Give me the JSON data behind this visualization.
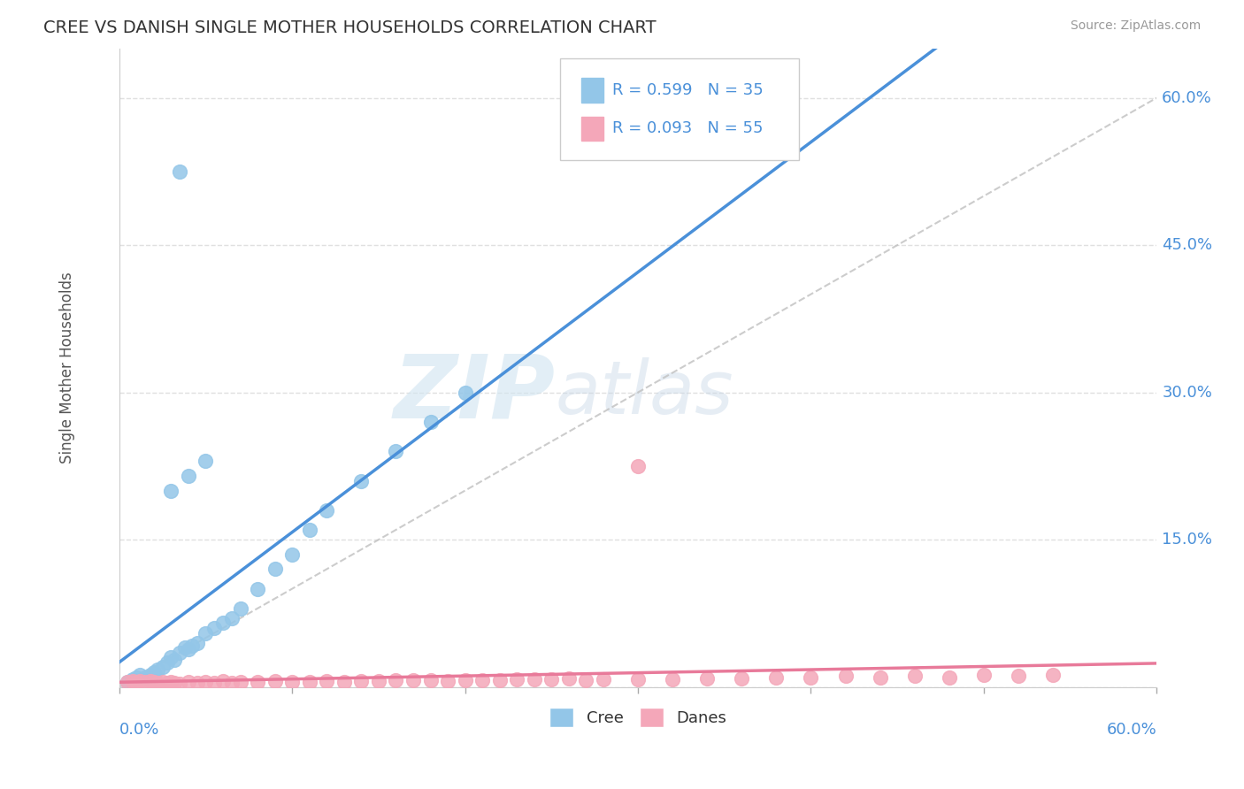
{
  "title": "CREE VS DANISH SINGLE MOTHER HOUSEHOLDS CORRELATION CHART",
  "source": "Source: ZipAtlas.com",
  "ylabel": "Single Mother Households",
  "cree_color": "#93C6E8",
  "danes_color": "#F4A7B9",
  "cree_line_color": "#4A90D9",
  "danes_line_color": "#E87A9A",
  "trend_line_color": "#C0C0C0",
  "cree_R": 0.599,
  "cree_N": 35,
  "danes_R": 0.093,
  "danes_N": 55,
  "watermark_zip": "ZIP",
  "watermark_atlas": "atlas",
  "watermark_color": "#C8D8E8",
  "background_color": "#FFFFFF",
  "grid_color": "#E0E0E0",
  "xlim": [
    0.0,
    0.6
  ],
  "ylim": [
    0.0,
    0.65
  ],
  "ytick_vals": [
    0.0,
    0.15,
    0.3,
    0.45,
    0.6
  ],
  "ytick_labels": [
    "",
    "15.0%",
    "30.0%",
    "45.0%",
    "60.0%"
  ],
  "cree_points_x": [
    0.005,
    0.008,
    0.01,
    0.012,
    0.015,
    0.018,
    0.02,
    0.022,
    0.025,
    0.028,
    0.03,
    0.032,
    0.035,
    0.038,
    0.04,
    0.042,
    0.045,
    0.05,
    0.055,
    0.06,
    0.065,
    0.07,
    0.08,
    0.09,
    0.1,
    0.11,
    0.12,
    0.14,
    0.16,
    0.18,
    0.2,
    0.03,
    0.04,
    0.05,
    0.035
  ],
  "cree_points_y": [
    0.005,
    0.008,
    0.01,
    0.012,
    0.01,
    0.012,
    0.015,
    0.018,
    0.02,
    0.025,
    0.03,
    0.028,
    0.035,
    0.04,
    0.038,
    0.042,
    0.045,
    0.055,
    0.06,
    0.065,
    0.07,
    0.08,
    0.1,
    0.12,
    0.135,
    0.16,
    0.18,
    0.21,
    0.24,
    0.27,
    0.3,
    0.2,
    0.215,
    0.23,
    0.525
  ],
  "danes_points_x": [
    0.005,
    0.008,
    0.01,
    0.012,
    0.015,
    0.018,
    0.02,
    0.022,
    0.025,
    0.028,
    0.03,
    0.032,
    0.035,
    0.04,
    0.045,
    0.05,
    0.055,
    0.06,
    0.065,
    0.07,
    0.08,
    0.09,
    0.1,
    0.11,
    0.12,
    0.13,
    0.14,
    0.15,
    0.16,
    0.17,
    0.18,
    0.19,
    0.2,
    0.21,
    0.22,
    0.23,
    0.24,
    0.25,
    0.26,
    0.27,
    0.28,
    0.3,
    0.32,
    0.34,
    0.36,
    0.38,
    0.4,
    0.42,
    0.44,
    0.46,
    0.48,
    0.5,
    0.52,
    0.54,
    0.3
  ],
  "danes_points_y": [
    0.005,
    0.006,
    0.005,
    0.006,
    0.005,
    0.006,
    0.005,
    0.004,
    0.005,
    0.004,
    0.005,
    0.004,
    0.003,
    0.005,
    0.004,
    0.005,
    0.004,
    0.006,
    0.004,
    0.005,
    0.005,
    0.006,
    0.005,
    0.005,
    0.006,
    0.005,
    0.006,
    0.006,
    0.007,
    0.007,
    0.007,
    0.006,
    0.007,
    0.007,
    0.007,
    0.008,
    0.008,
    0.008,
    0.009,
    0.007,
    0.008,
    0.008,
    0.008,
    0.009,
    0.009,
    0.01,
    0.01,
    0.011,
    0.01,
    0.011,
    0.01,
    0.012,
    0.011,
    0.012,
    0.225
  ]
}
